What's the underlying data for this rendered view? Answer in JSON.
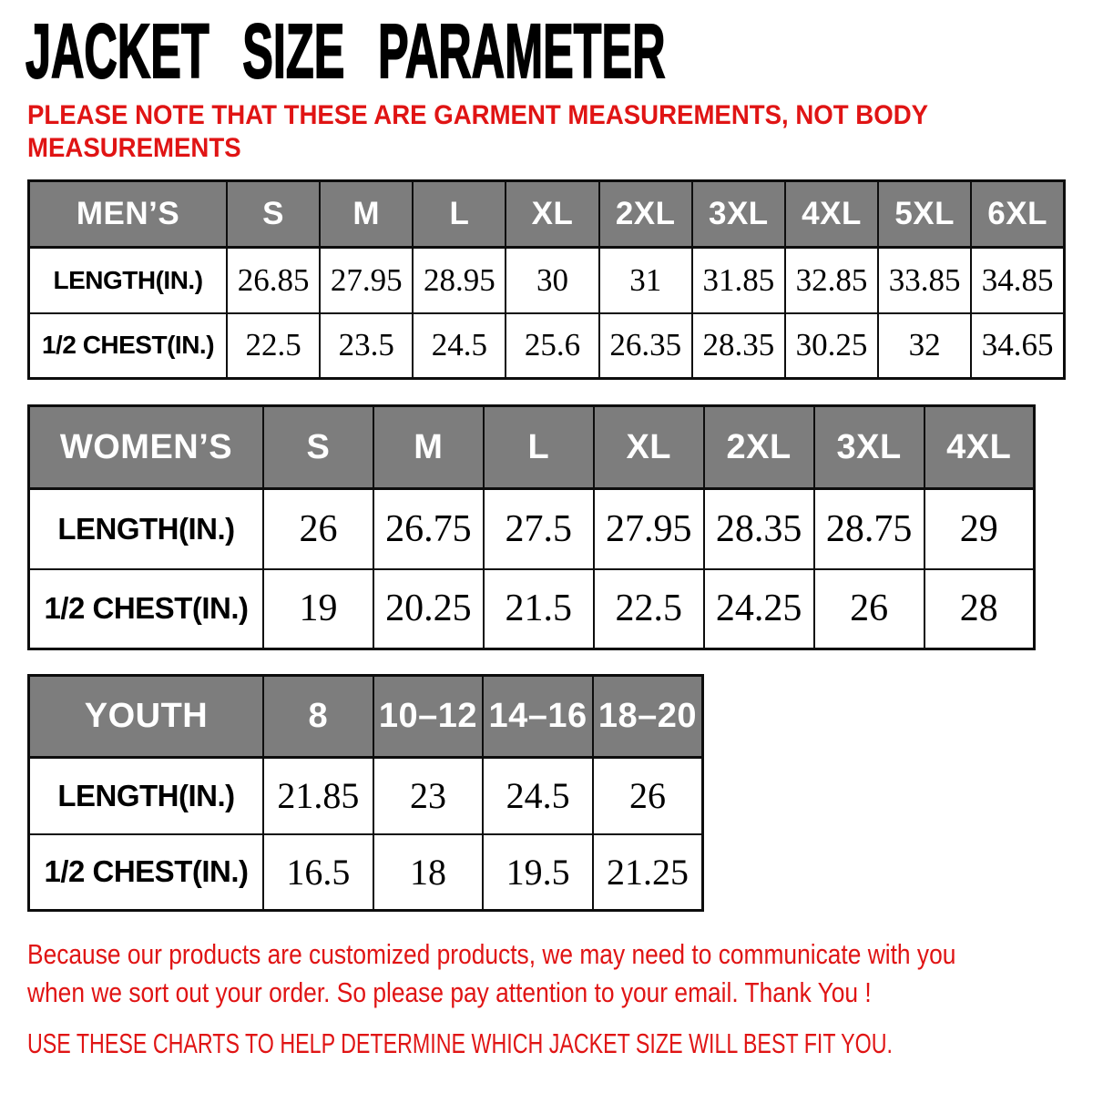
{
  "title": "JACKET SIZE PARAMETER",
  "note": {
    "line1": "PLEASE NOTE THAT THESE ARE GARMENT MEASUREMENTS, NOT BODY",
    "line2": "MEASUREMENTS"
  },
  "footer": {
    "para_line1": "Because our products are customized products, we may need to communicate with you",
    "para_line2": "when we sort out your order. So please pay attention to your email. Thank You !",
    "charts_line": "USE THESE CHARTS TO HELP DETERMINE WHICH JACKET SIZE WILL BEST FIT YOU."
  },
  "colors": {
    "accent_red": "#e01414",
    "header_gray": "#7d7d7d",
    "border_black": "#0d0d0d",
    "table_text": "#000000"
  },
  "chart_data": [
    {
      "type": "table",
      "name": "mens",
      "title": "MEN’S",
      "columns": [
        "S",
        "M",
        "L",
        "XL",
        "2XL",
        "3XL",
        "4XL",
        "5XL",
        "6XL"
      ],
      "rows": [
        {
          "label": "LENGTH(IN.)",
          "values": [
            "26.85",
            "27.95",
            "28.95",
            "30",
            "31",
            "31.85",
            "32.85",
            "33.85",
            "34.85"
          ]
        },
        {
          "label": "1/2 CHEST(IN.)",
          "values": [
            "22.5",
            "23.5",
            "24.5",
            "25.6",
            "26.35",
            "28.35",
            "30.25",
            "32",
            "34.65"
          ]
        }
      ]
    },
    {
      "type": "table",
      "name": "womens",
      "title": "WOMEN’S",
      "columns": [
        "S",
        "M",
        "L",
        "XL",
        "2XL",
        "3XL",
        "4XL"
      ],
      "rows": [
        {
          "label": "LENGTH(IN.)",
          "values": [
            "26",
            "26.75",
            "27.5",
            "27.95",
            "28.35",
            "28.75",
            "29"
          ]
        },
        {
          "label": "1/2 CHEST(IN.)",
          "values": [
            "19",
            "20.25",
            "21.5",
            "22.5",
            "24.25",
            "26",
            "28"
          ]
        }
      ]
    },
    {
      "type": "table",
      "name": "youth",
      "title": "YOUTH",
      "columns": [
        "8",
        "10–12",
        "14–16",
        "18–20"
      ],
      "rows": [
        {
          "label": "LENGTH(IN.)",
          "values": [
            "21.85",
            "23",
            "24.5",
            "26"
          ]
        },
        {
          "label": "1/2 CHEST(IN.)",
          "values": [
            "16.5",
            "18",
            "19.5",
            "21.25"
          ]
        }
      ]
    }
  ]
}
